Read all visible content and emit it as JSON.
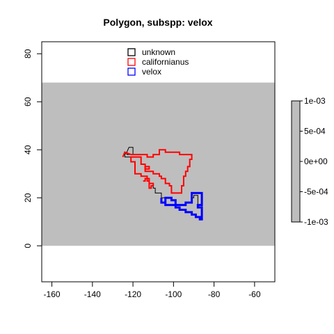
{
  "chart_data": {
    "type": "map",
    "title": "Polygon, subspp: velox",
    "xlabel": "",
    "ylabel": "",
    "xlim": [
      -165,
      -50
    ],
    "ylim": [
      -15,
      85
    ],
    "x_ticks": [
      -160,
      -140,
      -120,
      -100,
      -80,
      -60
    ],
    "y_ticks": [
      0,
      20,
      40,
      60,
      80
    ],
    "x_tick_labels": [
      "-160",
      "-140",
      "-120",
      "-100",
      "-80",
      "-60"
    ],
    "y_tick_labels": [
      "0",
      "20",
      "40",
      "60",
      "80"
    ],
    "raster": {
      "xmin": -165,
      "xmax": -50,
      "ymin": 0,
      "ymax": 68,
      "color": "#bebebe",
      "value": 0
    },
    "legend_position": "top-center",
    "legend": [
      {
        "name": "unknown",
        "color": "#000000"
      },
      {
        "name": "californianus",
        "color": "#ff0000"
      },
      {
        "name": "velox",
        "color": "#0000ff"
      }
    ],
    "colorbar": {
      "labels": [
        "1e-03",
        "5e-04",
        "0e+00",
        "-5e-04",
        "-1e-03"
      ],
      "values": [
        0.001,
        0.0005,
        0,
        -0.0005,
        -0.001
      ],
      "color": "#bebebe"
    },
    "series": [
      {
        "name": "unknown",
        "color": "#000000",
        "line_width": 1,
        "points": [
          [
            -123,
            39
          ],
          [
            -122,
            41
          ],
          [
            -120,
            41
          ],
          [
            -120,
            38
          ],
          [
            -123,
            38
          ],
          [
            -123,
            39
          ],
          [
            -124,
            38
          ],
          [
            -124,
            37
          ],
          [
            -121,
            37
          ],
          [
            -121,
            35
          ],
          [
            -119,
            35
          ],
          [
            -119,
            30
          ],
          [
            -116,
            30
          ],
          [
            -116,
            29
          ],
          [
            -113,
            29
          ],
          [
            -113,
            28
          ],
          [
            -112,
            28
          ],
          [
            -112,
            26
          ],
          [
            -110,
            26
          ],
          [
            -110,
            24
          ],
          [
            -109,
            24
          ],
          [
            -109,
            22
          ],
          [
            -106,
            22
          ],
          [
            -106,
            20
          ],
          [
            -101,
            20
          ],
          [
            -101,
            19
          ],
          [
            -99,
            19
          ],
          [
            -99,
            17
          ],
          [
            -94,
            17
          ],
          [
            -94,
            18
          ],
          [
            -91,
            18
          ],
          [
            -91,
            20
          ],
          [
            -90,
            20
          ],
          [
            -90,
            21
          ],
          [
            -88,
            21
          ],
          [
            -88,
            17
          ],
          [
            -86,
            17
          ],
          [
            -86,
            13
          ]
        ]
      },
      {
        "name": "californianus",
        "color": "#ff0000",
        "line_width": 2,
        "points": [
          [
            -125,
            37
          ],
          [
            -124,
            39
          ],
          [
            -121,
            38
          ],
          [
            -113,
            38
          ],
          [
            -113,
            37
          ],
          [
            -110,
            37
          ],
          [
            -110,
            38
          ],
          [
            -107,
            38
          ],
          [
            -107,
            40
          ],
          [
            -104,
            40
          ],
          [
            -104,
            39
          ],
          [
            -97,
            39
          ],
          [
            -97,
            38
          ],
          [
            -91,
            38
          ],
          [
            -91,
            36
          ],
          [
            -92,
            36
          ],
          [
            -92,
            33
          ],
          [
            -93,
            33
          ],
          [
            -93,
            31
          ],
          [
            -94,
            31
          ],
          [
            -94,
            29
          ],
          [
            -95,
            29
          ],
          [
            -95,
            25
          ],
          [
            -96,
            25
          ],
          [
            -96,
            22
          ],
          [
            -101,
            22
          ],
          [
            -101,
            25
          ],
          [
            -102,
            25
          ],
          [
            -102,
            26
          ],
          [
            -104,
            26
          ],
          [
            -104,
            28
          ],
          [
            -106,
            28
          ],
          [
            -106,
            29
          ],
          [
            -107,
            29
          ],
          [
            -107,
            30
          ],
          [
            -110,
            30
          ],
          [
            -110,
            31
          ],
          [
            -114,
            31
          ],
          [
            -114,
            34
          ],
          [
            -116,
            34
          ],
          [
            -116,
            37
          ],
          [
            -121,
            37
          ],
          [
            -121,
            35
          ],
          [
            -119,
            35
          ],
          [
            -119,
            30
          ],
          [
            -116,
            30
          ],
          [
            -116,
            29
          ],
          [
            -113,
            29
          ],
          [
            -113,
            28
          ],
          [
            -112,
            28
          ],
          [
            -112,
            26
          ],
          [
            -110,
            26
          ],
          [
            -110,
            25
          ],
          [
            -111,
            25
          ],
          [
            -111,
            24
          ],
          [
            -112,
            24
          ],
          [
            -112,
            27
          ],
          [
            -113,
            27
          ],
          [
            -113,
            28
          ],
          [
            -114,
            28
          ],
          [
            -114,
            27
          ],
          [
            -115,
            27
          ]
        ]
      },
      {
        "name": "californianus",
        "color": "#ff0000",
        "line_width": 2,
        "points": [
          [
            -114,
            32
          ],
          [
            -112,
            32
          ],
          [
            -112,
            33
          ],
          [
            -114,
            33
          ],
          [
            -114,
            32
          ]
        ]
      },
      {
        "name": "velox",
        "color": "#0000ff",
        "line_width": 3,
        "points": [
          [
            -106,
            20
          ],
          [
            -106,
            18
          ],
          [
            -104,
            18
          ],
          [
            -104,
            17
          ],
          [
            -99,
            17
          ],
          [
            -99,
            16
          ],
          [
            -97,
            16
          ],
          [
            -97,
            15
          ],
          [
            -94,
            15
          ],
          [
            -94,
            14
          ],
          [
            -91,
            14
          ],
          [
            -91,
            13
          ],
          [
            -89,
            13
          ],
          [
            -89,
            12
          ],
          [
            -87,
            12
          ],
          [
            -87,
            11
          ],
          [
            -86,
            11
          ],
          [
            -86,
            16
          ],
          [
            -88,
            16
          ],
          [
            -88,
            17
          ],
          [
            -86,
            17
          ],
          [
            -86,
            22
          ],
          [
            -91,
            22
          ],
          [
            -91,
            18
          ],
          [
            -94,
            18
          ],
          [
            -94,
            17
          ],
          [
            -99,
            17
          ],
          [
            -99,
            19
          ],
          [
            -101,
            19
          ],
          [
            -101,
            20
          ],
          [
            -104,
            20
          ],
          [
            -104,
            18
          ],
          [
            -106,
            18
          ]
        ]
      }
    ]
  }
}
